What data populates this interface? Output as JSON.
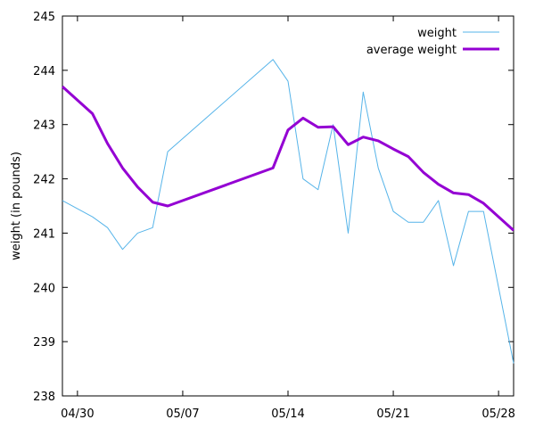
{
  "chart_data": {
    "type": "line",
    "title": "",
    "xlabel": "",
    "ylabel": "weight (in pounds)",
    "x_axis": {
      "type": "date",
      "range": [
        "2018-04-29",
        "2018-05-29"
      ],
      "ticks": [
        {
          "date": "2018-04-30",
          "label": "04/30"
        },
        {
          "date": "2018-05-07",
          "label": "05/07"
        },
        {
          "date": "2018-05-14",
          "label": "05/14"
        },
        {
          "date": "2018-05-21",
          "label": "05/21"
        },
        {
          "date": "2018-05-28",
          "label": "05/28"
        }
      ]
    },
    "y_axis": {
      "range": [
        238,
        245
      ],
      "ticks": [
        238,
        239,
        240,
        241,
        242,
        243,
        244,
        245
      ]
    },
    "grid": false,
    "legend_position": "top-right",
    "series": [
      {
        "name": "weight",
        "color": "#56b4e9",
        "style": "thin",
        "points": [
          {
            "x": "2018-04-29",
            "y": 241.6
          },
          {
            "x": "2018-05-01",
            "y": 241.3
          },
          {
            "x": "2018-05-02",
            "y": 241.1
          },
          {
            "x": "2018-05-03",
            "y": 240.7
          },
          {
            "x": "2018-05-04",
            "y": 241.0
          },
          {
            "x": "2018-05-05",
            "y": 241.1
          },
          {
            "x": "2018-05-06",
            "y": 242.5
          },
          {
            "x": "2018-05-13",
            "y": 244.2
          },
          {
            "x": "2018-05-14",
            "y": 243.8
          },
          {
            "x": "2018-05-15",
            "y": 242.0
          },
          {
            "x": "2018-05-16",
            "y": 241.8
          },
          {
            "x": "2018-05-17",
            "y": 243.0
          },
          {
            "x": "2018-05-18",
            "y": 241.0
          },
          {
            "x": "2018-05-19",
            "y": 243.6
          },
          {
            "x": "2018-05-20",
            "y": 242.2
          },
          {
            "x": "2018-05-21",
            "y": 241.4
          },
          {
            "x": "2018-05-22",
            "y": 241.2
          },
          {
            "x": "2018-05-23",
            "y": 241.2
          },
          {
            "x": "2018-05-24",
            "y": 241.6
          },
          {
            "x": "2018-05-25",
            "y": 240.4
          },
          {
            "x": "2018-05-26",
            "y": 241.4
          },
          {
            "x": "2018-05-27",
            "y": 241.4
          },
          {
            "x": "2018-05-29",
            "y": 238.6
          }
        ]
      },
      {
        "name": "average weight",
        "color": "#9400d3",
        "style": "thick",
        "points": [
          {
            "x": "2018-04-29",
            "y": 243.7
          },
          {
            "x": "2018-05-01",
            "y": 243.2
          },
          {
            "x": "2018-05-02",
            "y": 242.65
          },
          {
            "x": "2018-05-03",
            "y": 242.2
          },
          {
            "x": "2018-05-04",
            "y": 241.85
          },
          {
            "x": "2018-05-05",
            "y": 241.57
          },
          {
            "x": "2018-05-06",
            "y": 241.5
          },
          {
            "x": "2018-05-13",
            "y": 242.2
          },
          {
            "x": "2018-05-14",
            "y": 242.9
          },
          {
            "x": "2018-05-15",
            "y": 243.12
          },
          {
            "x": "2018-05-16",
            "y": 242.95
          },
          {
            "x": "2018-05-17",
            "y": 242.96
          },
          {
            "x": "2018-05-18",
            "y": 242.63
          },
          {
            "x": "2018-05-19",
            "y": 242.77
          },
          {
            "x": "2018-05-20",
            "y": 242.7
          },
          {
            "x": "2018-05-21",
            "y": 242.55
          },
          {
            "x": "2018-05-22",
            "y": 242.41
          },
          {
            "x": "2018-05-23",
            "y": 242.12
          },
          {
            "x": "2018-05-24",
            "y": 241.9
          },
          {
            "x": "2018-05-25",
            "y": 241.74
          },
          {
            "x": "2018-05-26",
            "y": 241.71
          },
          {
            "x": "2018-05-27",
            "y": 241.55
          },
          {
            "x": "2018-05-29",
            "y": 241.05
          }
        ]
      }
    ]
  }
}
